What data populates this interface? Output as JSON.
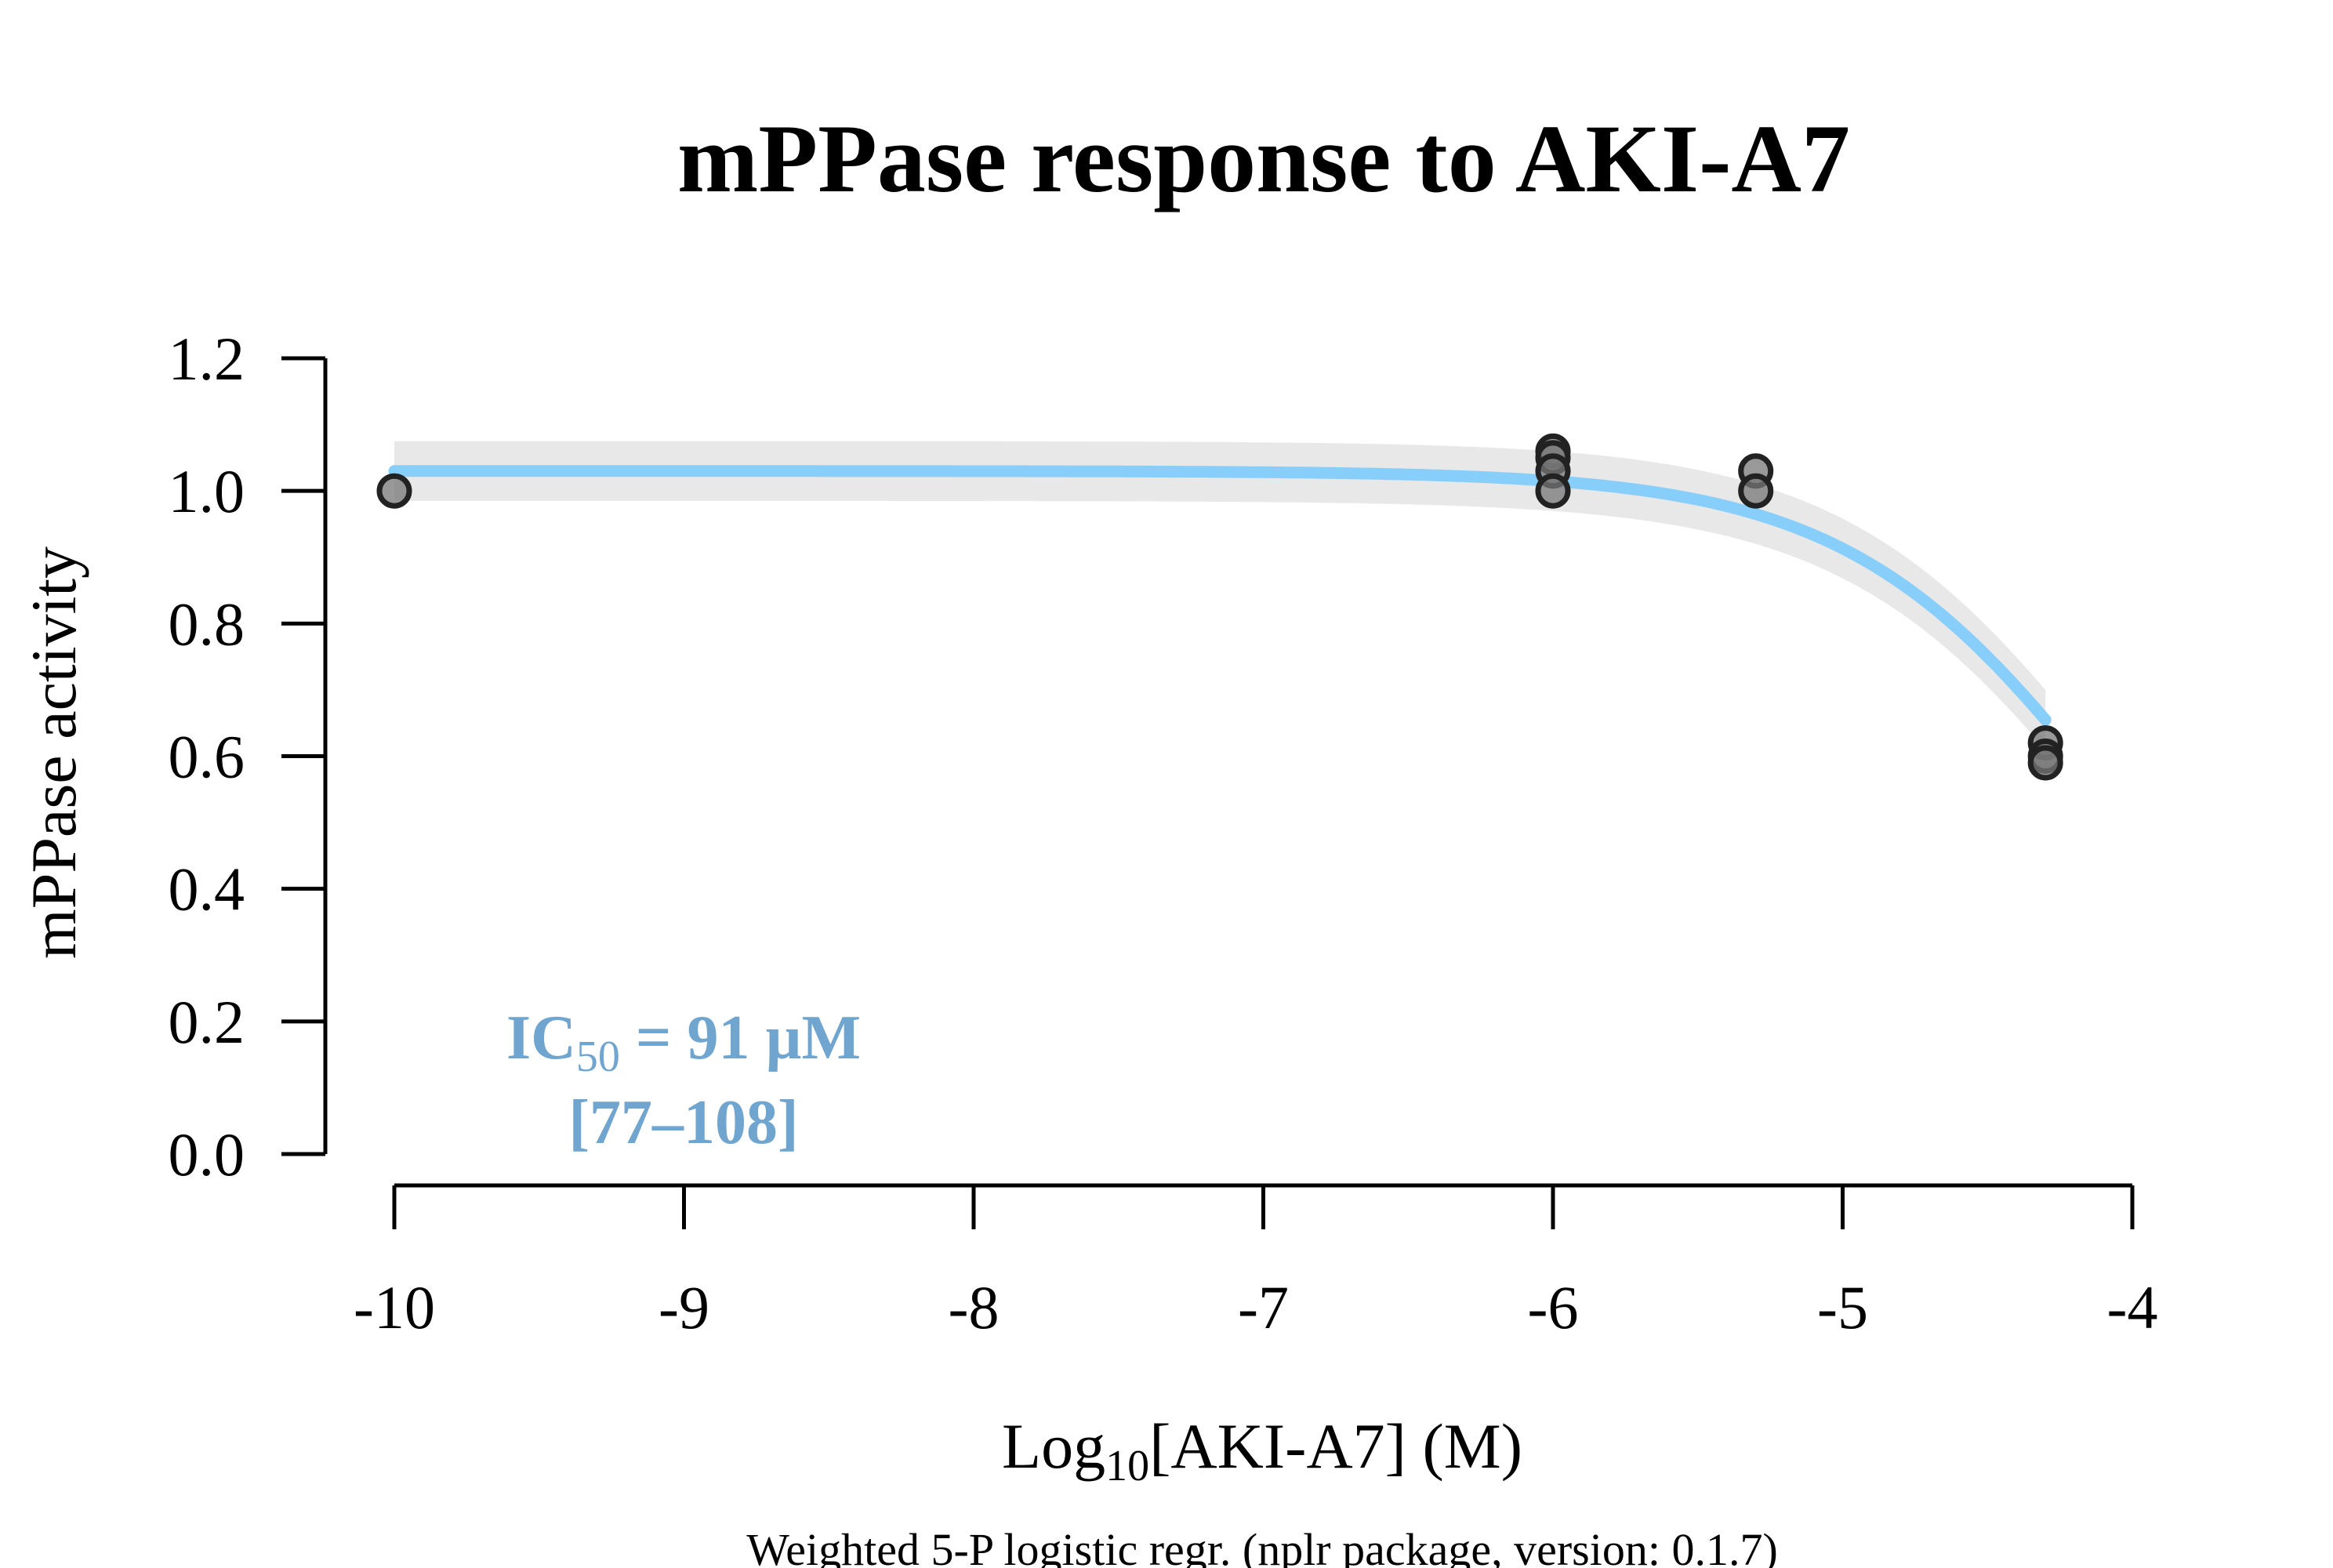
{
  "chart_data": {
    "type": "scatter",
    "title": "mPPase response to AKI-A7",
    "xlabel": {
      "prefix": "Log",
      "sub": "10",
      "suffix": "[AKI-A7] (M)"
    },
    "ylabel": "mPPase activity",
    "footnote": "Weighted 5-P logistic regr. (nplr package, version: 0.1.7)",
    "xlim": [
      -10,
      -4
    ],
    "ylim": [
      0,
      1.2
    ],
    "x_ticks": [
      -10,
      -9,
      -8,
      -7,
      -6,
      -5,
      -4
    ],
    "x_tick_labels": [
      "-10",
      "-9",
      "-8",
      "-7",
      "-6",
      "-5",
      "-4"
    ],
    "y_ticks": [
      0,
      0.2,
      0.4,
      0.6,
      0.8,
      1.0,
      1.2
    ],
    "y_tick_labels": [
      "0.0",
      "0.2",
      "0.4",
      "0.6",
      "0.8",
      "1.0",
      "1.2"
    ],
    "grid": false,
    "points": [
      {
        "x": -10,
        "y": 1.0
      },
      {
        "x": -6,
        "y": 1.06
      },
      {
        "x": -6,
        "y": 1.05
      },
      {
        "x": -6,
        "y": 1.03
      },
      {
        "x": -6,
        "y": 1.0
      },
      {
        "x": -5.3,
        "y": 1.03
      },
      {
        "x": -5.3,
        "y": 1.0
      },
      {
        "x": -4.3,
        "y": 0.62
      },
      {
        "x": -4.3,
        "y": 0.6
      },
      {
        "x": -4.3,
        "y": 0.59
      }
    ],
    "fit": {
      "type": "logistic",
      "top": 1.03,
      "bottom": 0,
      "ic50_log": -4.04,
      "hill": 0.93,
      "x_range": [
        -10,
        -4.3
      ],
      "color": "#87CEFA",
      "band_color": "#E8E8E8",
      "band_halfwidth": 0.045
    },
    "point_style": {
      "fill": "#777777",
      "stroke": "#222222"
    },
    "annotation": {
      "ic_prefix": "IC",
      "ic_sub": "50",
      "ic_suffix": " = 91 µM",
      "ci": "[77–108]",
      "color": "#6FA5CE"
    }
  }
}
